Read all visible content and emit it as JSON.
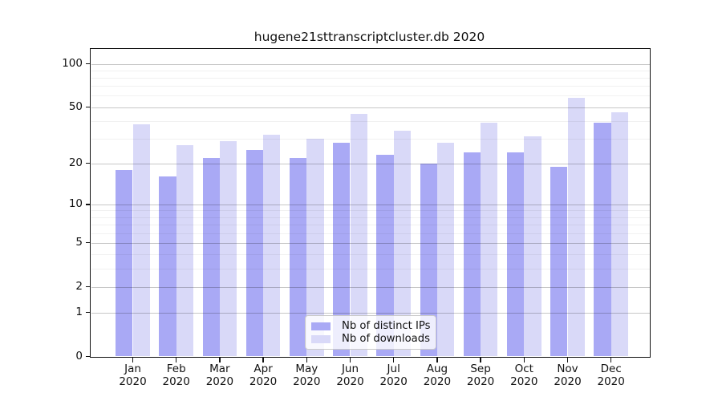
{
  "chart_data": {
    "type": "bar",
    "title": "hugene21sttranscriptcluster.db 2020",
    "categories": [
      "Jan",
      "Feb",
      "Mar",
      "Apr",
      "May",
      "Jun",
      "Jul",
      "Aug",
      "Sep",
      "Oct",
      "Nov",
      "Dec"
    ],
    "category_year": "2020",
    "series": [
      {
        "name": "Nb of distinct IPs",
        "color": "#a9a9f5",
        "values": [
          18,
          16,
          22,
          25,
          22,
          28,
          23,
          20,
          24,
          24,
          19,
          39
        ]
      },
      {
        "name": "Nb of downloads",
        "color": "#d9d9f8",
        "values": [
          38,
          27,
          29,
          32,
          30,
          45,
          34,
          28,
          39,
          31,
          58,
          46
        ]
      }
    ],
    "yscale": "log1p",
    "ylim": [
      0,
      126
    ],
    "yticks": [
      0,
      1,
      2,
      5,
      10,
      20,
      50,
      100
    ],
    "minor_gridlines": [
      3,
      4,
      6,
      7,
      8,
      9,
      30,
      40,
      60,
      70,
      80,
      90
    ],
    "grid": true,
    "legend_position": "lower-center",
    "xlabel": "",
    "ylabel": ""
  },
  "colors": {
    "background": "#ffffff",
    "axis": "#111111",
    "text": "#111111",
    "bar_distinct_ips": "#a9a9f5",
    "bar_downloads": "#d9d9f8"
  }
}
